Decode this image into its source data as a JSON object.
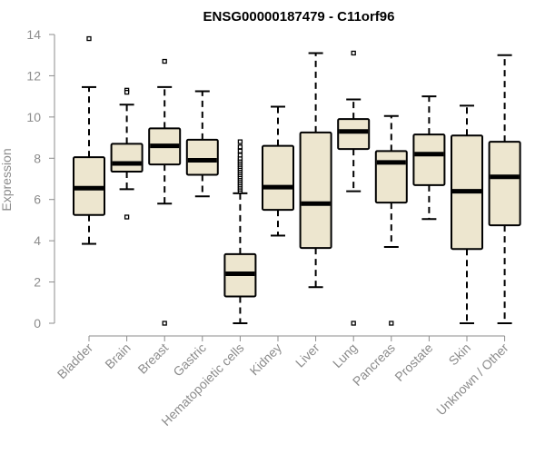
{
  "chart_data": {
    "type": "boxplot",
    "title": "ENSG00000187479 - C11orf96",
    "xlabel": "",
    "ylabel": "Expression",
    "ylim": [
      0,
      14
    ],
    "yticks": [
      0,
      2,
      4,
      6,
      8,
      10,
      12,
      14
    ],
    "box_fill": "#ede6cf",
    "line_color": "#000000",
    "categories": [
      "Bladder",
      "Brain",
      "Breast",
      "Gastric",
      "Hematopoietic cells",
      "Kidney",
      "Liver",
      "Lung",
      "Pancreas",
      "Prostate",
      "Skin",
      "Unknown / Other"
    ],
    "boxes": [
      {
        "label": "Bladder",
        "whisker_low": 3.85,
        "q1": 5.25,
        "median": 6.55,
        "q3": 8.05,
        "whisker_high": 11.45,
        "outliers": [
          13.8
        ]
      },
      {
        "label": "Brain",
        "whisker_low": 6.5,
        "q1": 7.35,
        "median": 7.75,
        "q3": 8.7,
        "whisker_high": 10.6,
        "outliers": [
          11.3,
          11.2,
          5.15
        ]
      },
      {
        "label": "Breast",
        "whisker_low": 5.8,
        "q1": 7.7,
        "median": 8.6,
        "q3": 9.45,
        "whisker_high": 11.45,
        "outliers": [
          12.7,
          0.0
        ]
      },
      {
        "label": "Gastric",
        "whisker_low": 6.15,
        "q1": 7.2,
        "median": 7.9,
        "q3": 8.9,
        "whisker_high": 11.25,
        "outliers": []
      },
      {
        "label": "Hematopoietic cells",
        "whisker_low": 0.0,
        "q1": 1.3,
        "median": 2.4,
        "q3": 3.35,
        "whisker_high": 6.3,
        "outliers": [
          6.4,
          6.5,
          6.6,
          6.7,
          6.8,
          6.9,
          7.0,
          7.1,
          7.2,
          7.3,
          7.4,
          7.5,
          7.6,
          7.7,
          7.8,
          7.9,
          8.0,
          8.15,
          8.35,
          8.55,
          8.8
        ]
      },
      {
        "label": "Kidney",
        "whisker_low": 4.25,
        "q1": 5.5,
        "median": 6.6,
        "q3": 8.6,
        "whisker_high": 10.5,
        "outliers": []
      },
      {
        "label": "Liver",
        "whisker_low": 1.75,
        "q1": 3.65,
        "median": 5.8,
        "q3": 9.25,
        "whisker_high": 13.1,
        "outliers": []
      },
      {
        "label": "Lung",
        "whisker_low": 6.4,
        "q1": 8.45,
        "median": 9.3,
        "q3": 9.9,
        "whisker_high": 10.85,
        "outliers": [
          13.1,
          0.0
        ]
      },
      {
        "label": "Pancreas",
        "whisker_low": 3.7,
        "q1": 5.85,
        "median": 7.8,
        "q3": 8.35,
        "whisker_high": 10.05,
        "outliers": [
          0.0
        ]
      },
      {
        "label": "Prostate",
        "whisker_low": 5.05,
        "q1": 6.7,
        "median": 8.2,
        "q3": 9.15,
        "whisker_high": 11.0,
        "outliers": []
      },
      {
        "label": "Skin",
        "whisker_low": 0.0,
        "q1": 3.6,
        "median": 6.4,
        "q3": 9.1,
        "whisker_high": 10.55,
        "outliers": []
      },
      {
        "label": "Unknown / Other",
        "whisker_low": 0.0,
        "q1": 4.75,
        "median": 7.1,
        "q3": 8.8,
        "whisker_high": 13.0,
        "outliers": []
      }
    ]
  }
}
